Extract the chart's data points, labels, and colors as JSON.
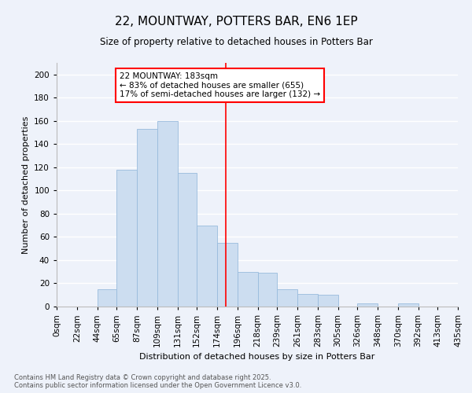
{
  "title": "22, MOUNTWAY, POTTERS BAR, EN6 1EP",
  "subtitle": "Size of property relative to detached houses in Potters Bar",
  "xlabel": "Distribution of detached houses by size in Potters Bar",
  "ylabel": "Number of detached properties",
  "bar_color": "#ccddf0",
  "bar_edge_color": "#99bbdd",
  "background_color": "#eef2fa",
  "grid_color": "#ffffff",
  "bin_edges": [
    0,
    22,
    44,
    65,
    87,
    109,
    131,
    152,
    174,
    196,
    218,
    239,
    261,
    283,
    305,
    326,
    348,
    370,
    392,
    413,
    435
  ],
  "bin_labels": [
    "0sqm",
    "22sqm",
    "44sqm",
    "65sqm",
    "87sqm",
    "109sqm",
    "131sqm",
    "152sqm",
    "174sqm",
    "196sqm",
    "218sqm",
    "239sqm",
    "261sqm",
    "283sqm",
    "305sqm",
    "326sqm",
    "348sqm",
    "370sqm",
    "392sqm",
    "413sqm",
    "435sqm"
  ],
  "counts": [
    0,
    0,
    15,
    118,
    153,
    160,
    115,
    70,
    55,
    30,
    29,
    15,
    11,
    10,
    0,
    3,
    0,
    3,
    0,
    0
  ],
  "property_size": 183,
  "ann_line1": "22 MOUNTWAY: 183sqm",
  "ann_line2": "← 83% of detached houses are smaller (655)",
  "ann_line3": "17% of semi-detached houses are larger (132) →",
  "footer_line1": "Contains HM Land Registry data © Crown copyright and database right 2025.",
  "footer_line2": "Contains public sector information licensed under the Open Government Licence v3.0.",
  "ylim": [
    0,
    210
  ],
  "yticks": [
    0,
    20,
    40,
    60,
    80,
    100,
    120,
    140,
    160,
    180,
    200
  ],
  "title_fontsize": 11,
  "subtitle_fontsize": 8.5,
  "xlabel_fontsize": 8,
  "ylabel_fontsize": 8,
  "tick_fontsize": 7.5,
  "footer_fontsize": 6,
  "ann_fontsize": 7.5
}
